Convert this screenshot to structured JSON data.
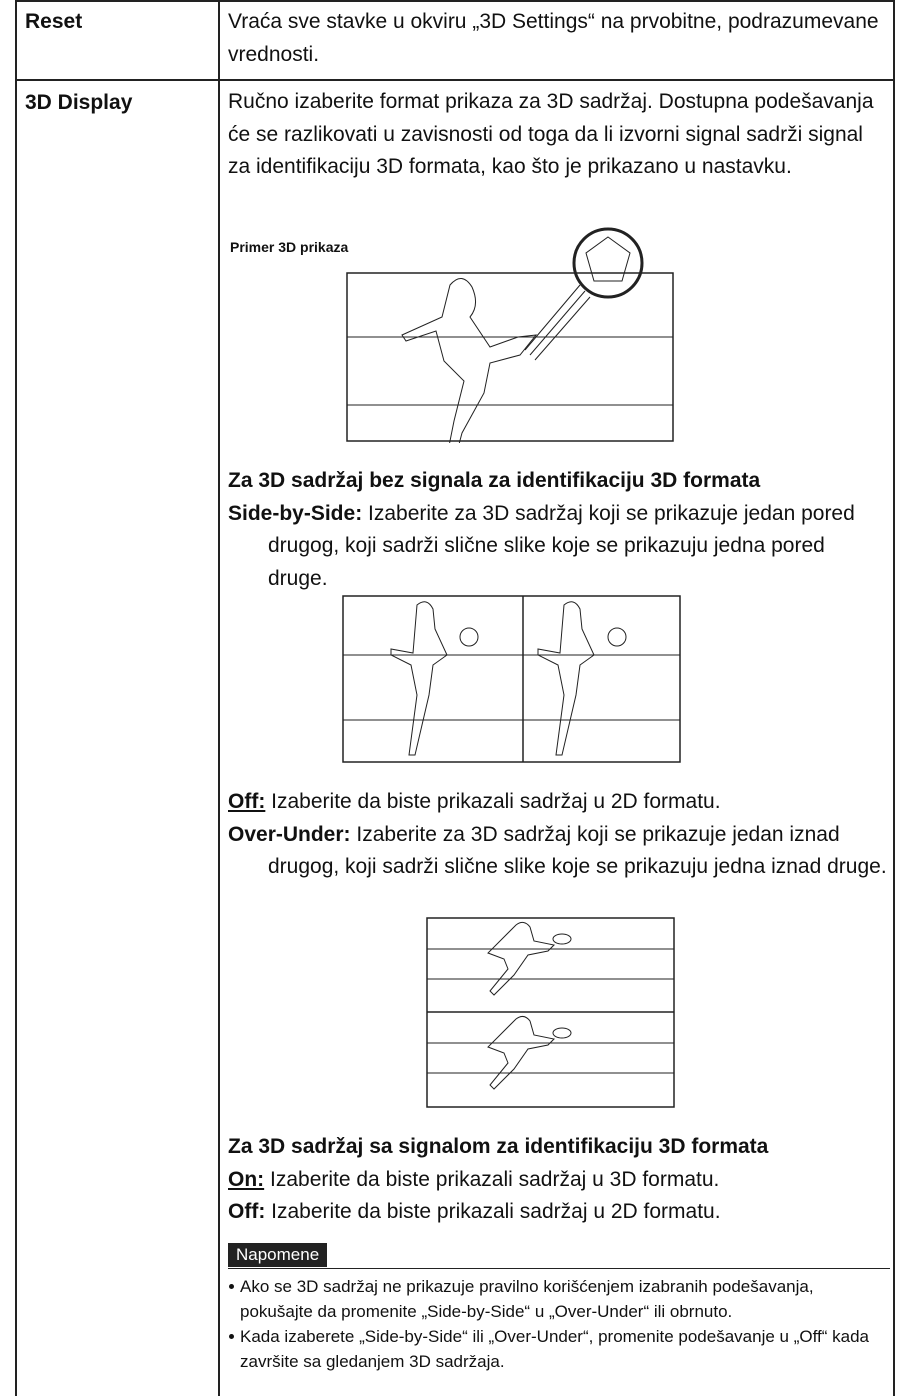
{
  "table": {
    "rows": [
      {
        "term": "Reset",
        "description": "Vraća sve stavke u okviru „3D Settings“ na prvobitne, podrazumevane vrednosti."
      },
      {
        "term": "3D Display",
        "description": "Ručno izaberite format prikaza za 3D sadržaj. Dostupna podešavanja će se razlikovati u zavisnosti od toga da li izvorni signal sadrži signal za identifikaciju 3D formata, kao što je prikazano u nastavku.",
        "figure_caption": "Primer 3D prikaza",
        "without_signal": {
          "heading": "Za 3D sadržaj bez signala za identifikaciju 3D formata",
          "items": [
            {
              "label": "Side-by-Side:",
              "text": "Izaberite za 3D sadržaj koji se prikazuje jedan pored drugog, koji sadrži slične slike koje se prikazuju jedna pored druge."
            },
            {
              "label": "Off:",
              "text": "Izaberite da biste prikazali sadržaj u 2D formatu."
            },
            {
              "label": "Over-Under:",
              "text": "Izaberite za 3D sadržaj koji se prikazuje jedan iznad drugog, koji sadrži slične slike koje se prikazuju jedna iznad druge."
            }
          ]
        },
        "with_signal": {
          "heading": "Za 3D sadržaj sa signalom za identifikaciju 3D formata",
          "items": [
            {
              "label": "On:",
              "text": "Izaberite da biste prikazali sadržaj u 3D formatu."
            },
            {
              "label": "Off:",
              "text": "Izaberite da biste prikazali sadržaj u 2D formatu."
            }
          ]
        },
        "notes": {
          "title": "Napomene",
          "items": [
            "Ako se 3D sadržaj ne prikazuje pravilno korišćenjem izabranih podešavanja, pokušajte da promenite „Side-by-Side“ u „Over-Under“ ili obrnuto.",
            "Kada izaberete „Side-by-Side“ ili „Over-Under“, promenite podešavanje u „Off“ kada završite sa gledanjem 3D sadržaja."
          ]
        }
      }
    ]
  }
}
